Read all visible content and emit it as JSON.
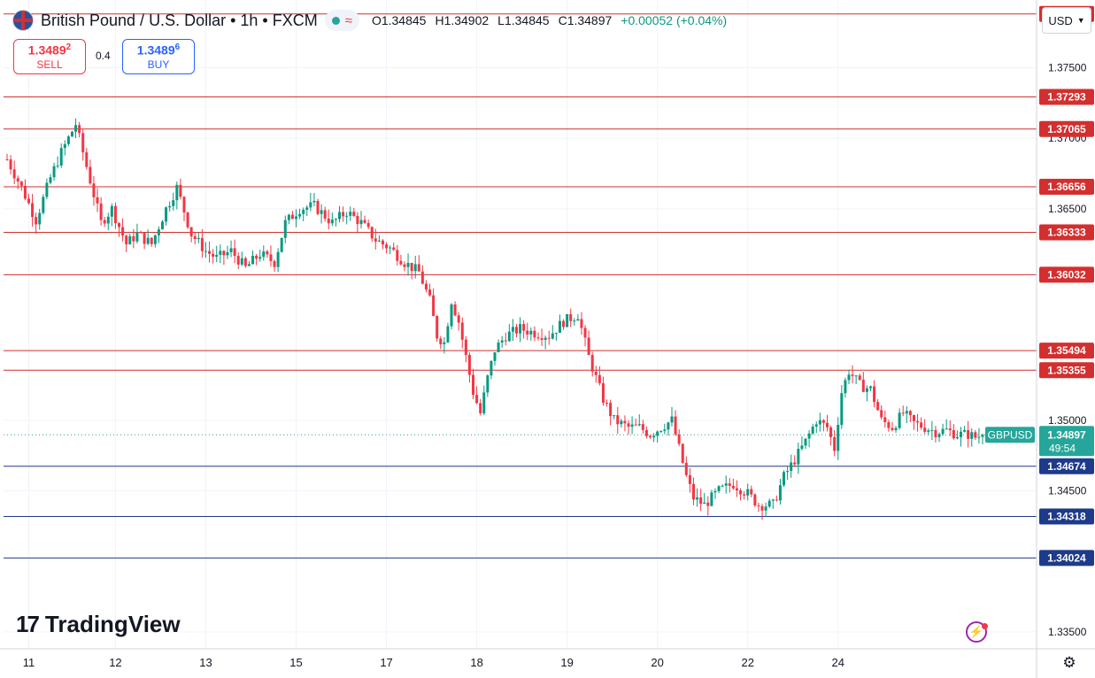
{
  "header": {
    "title": "British Pound / U.S. Dollar • 1h • FXCM",
    "open": "O1.34845",
    "high": "H1.34902",
    "low": "L1.34845",
    "close": "C1.34897",
    "change": "+0.00052 (+0.04%)",
    "flag_icon": "gb-us-flag-icon",
    "status_icon": "market-open-dot-icon",
    "wave_icon": "wave-icon"
  },
  "trade": {
    "sell_price_main": "1.3489",
    "sell_price_sup": "2",
    "sell_label": "SELL",
    "spread": "0.4",
    "buy_price_main": "1.3489",
    "buy_price_sup": "6",
    "buy_label": "BUY"
  },
  "currency_button": {
    "label": "USD",
    "icon": "chevron-down-icon"
  },
  "logo": {
    "text": "TradingView",
    "icon": "tradingview-logo-icon"
  },
  "colors": {
    "up": "#089981",
    "down": "#f23645",
    "resistance": "#d32f2f",
    "support": "#1e3a8a",
    "price_label": "#26a69a",
    "grid": "#f0f3fa",
    "axis_text": "#131722"
  },
  "chart_data": {
    "type": "candlestick",
    "title": "British Pound / U.S. Dollar • 1h • FXCM",
    "x_ticks": [
      "11",
      "12",
      "13",
      "15",
      "17",
      "18",
      "19",
      "20",
      "22",
      "24"
    ],
    "x_tick_bar_index": [
      6,
      30,
      55,
      80,
      105,
      130,
      155,
      180,
      205,
      230
    ],
    "y_ticks": [
      1.375,
      1.37,
      1.365,
      1.35,
      1.345,
      1.335
    ],
    "ylim": [
      1.3338,
      1.3798
    ],
    "grid": true,
    "horizontal_levels": [
      {
        "value": 1.37881,
        "label": "1.37881",
        "kind": "resistance"
      },
      {
        "value": 1.37293,
        "label": "1.37293",
        "kind": "resistance"
      },
      {
        "value": 1.37065,
        "label": "1.37065",
        "kind": "resistance"
      },
      {
        "value": 1.36656,
        "label": "1.36656",
        "kind": "resistance"
      },
      {
        "value": 1.36333,
        "label": "1.36333",
        "kind": "resistance"
      },
      {
        "value": 1.36032,
        "label": "1.36032",
        "kind": "resistance"
      },
      {
        "value": 1.35494,
        "label": "1.35494",
        "kind": "resistance"
      },
      {
        "value": 1.35355,
        "label": "1.35355",
        "kind": "resistance"
      },
      {
        "value": 1.34674,
        "label": "1.34674",
        "kind": "support"
      },
      {
        "value": 1.34318,
        "label": "1.34318",
        "kind": "support"
      },
      {
        "value": 1.34024,
        "label": "1.34024",
        "kind": "support"
      }
    ],
    "last_price": {
      "value": 1.34897,
      "symbol": "GBPUSD",
      "label": "1.34897",
      "countdown": "49:54"
    },
    "anchors": [
      [
        0,
        1.3685
      ],
      [
        4,
        1.3665
      ],
      [
        8,
        1.3642
      ],
      [
        12,
        1.3672
      ],
      [
        15,
        1.369
      ],
      [
        19,
        1.371
      ],
      [
        23,
        1.367
      ],
      [
        26,
        1.364
      ],
      [
        29,
        1.365
      ],
      [
        33,
        1.3625
      ],
      [
        36,
        1.3632
      ],
      [
        40,
        1.3625
      ],
      [
        44,
        1.365
      ],
      [
        47,
        1.3665
      ],
      [
        51,
        1.3632
      ],
      [
        55,
        1.362
      ],
      [
        58,
        1.3615
      ],
      [
        62,
        1.362
      ],
      [
        66,
        1.3608
      ],
      [
        70,
        1.3618
      ],
      [
        74,
        1.3612
      ],
      [
        77,
        1.364
      ],
      [
        81,
        1.365
      ],
      [
        85,
        1.3652
      ],
      [
        90,
        1.364
      ],
      [
        94,
        1.3648
      ],
      [
        98,
        1.364
      ],
      [
        102,
        1.3628
      ],
      [
        106,
        1.3622
      ],
      [
        110,
        1.3612
      ],
      [
        114,
        1.3605
      ],
      [
        117,
        1.3585
      ],
      [
        119,
        1.356
      ],
      [
        121,
        1.3555
      ],
      [
        123,
        1.3585
      ],
      [
        125,
        1.357
      ],
      [
        127,
        1.3545
      ],
      [
        129,
        1.352
      ],
      [
        131,
        1.3505
      ],
      [
        133,
        1.353
      ],
      [
        135,
        1.355
      ],
      [
        138,
        1.356
      ],
      [
        142,
        1.3565
      ],
      [
        146,
        1.3562
      ],
      [
        150,
        1.356
      ],
      [
        154,
        1.357
      ],
      [
        158,
        1.3575
      ],
      [
        161,
        1.3545
      ],
      [
        163,
        1.353
      ],
      [
        165,
        1.3515
      ],
      [
        168,
        1.35
      ],
      [
        172,
        1.3495
      ],
      [
        175,
        1.3495
      ],
      [
        178,
        1.349
      ],
      [
        181,
        1.3495
      ],
      [
        184,
        1.35
      ],
      [
        186,
        1.348
      ],
      [
        188,
        1.346
      ],
      [
        190,
        1.3445
      ],
      [
        193,
        1.344
      ],
      [
        197,
        1.345
      ],
      [
        201,
        1.3455
      ],
      [
        205,
        1.3448
      ],
      [
        208,
        1.344
      ],
      [
        212,
        1.344
      ],
      [
        215,
        1.346
      ],
      [
        218,
        1.3472
      ],
      [
        221,
        1.3485
      ],
      [
        224,
        1.35
      ],
      [
        227,
        1.3495
      ],
      [
        229,
        1.348
      ],
      [
        231,
        1.352
      ],
      [
        233,
        1.3535
      ],
      [
        236,
        1.3525
      ],
      [
        239,
        1.3522
      ],
      [
        242,
        1.35
      ],
      [
        245,
        1.3495
      ],
      [
        248,
        1.3505
      ],
      [
        251,
        1.3498
      ],
      [
        254,
        1.3495
      ],
      [
        257,
        1.3492
      ],
      [
        260,
        1.3493
      ],
      [
        263,
        1.349
      ],
      [
        266,
        1.349
      ],
      [
        268,
        1.3488
      ],
      [
        270,
        1.34897
      ]
    ],
    "bars": 271
  }
}
